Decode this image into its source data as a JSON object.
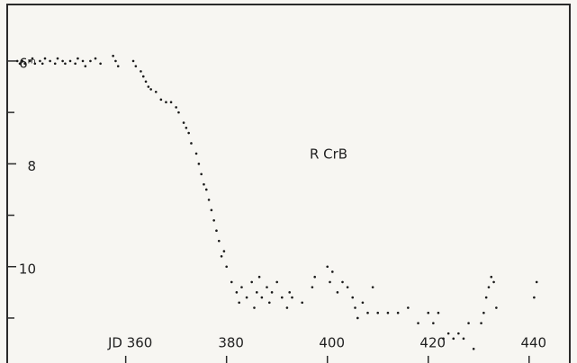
{
  "chart_data": {
    "type": "scatter",
    "title": "R CrB",
    "color": "#1a1a1a",
    "xlim": [
      336.5,
      449.5
    ],
    "ylim": [
      4.9,
      11.7
    ],
    "y_inverted": true,
    "xticks": [
      {
        "value": 360,
        "label": "JD 360"
      },
      380,
      400,
      420,
      440
    ],
    "yticks": [
      {
        "value": 6,
        "label": "6ᵐ"
      },
      8,
      10
    ],
    "minor_yticks": [
      7,
      9,
      11
    ],
    "x": [
      338.5,
      339,
      339.5,
      340,
      341,
      341.5,
      342,
      343,
      343.5,
      344,
      345,
      346,
      346.5,
      347.5,
      348,
      349,
      350,
      350.5,
      351.5,
      352,
      353,
      354,
      355,
      357.5,
      358,
      358.5,
      361.5,
      362,
      363,
      363.5,
      364,
      364.5,
      365,
      366,
      367,
      368,
      369,
      370,
      370.5,
      371.5,
      372,
      372.5,
      373,
      374,
      374.5,
      375,
      375.5,
      376,
      376.5,
      377,
      377.5,
      378,
      378.5,
      379,
      379.5,
      380,
      381,
      382,
      382.5,
      383,
      384,
      385,
      385.5,
      386,
      386.5,
      387,
      388,
      388.5,
      389,
      390,
      391,
      392,
      392.5,
      393,
      395,
      397,
      397.5,
      400,
      400.5,
      401,
      402,
      403,
      404,
      405,
      405.5,
      406,
      407,
      408,
      409,
      410,
      412,
      414,
      416,
      418,
      420,
      421,
      422,
      423,
      424,
      425,
      426,
      427,
      428,
      429,
      430.5,
      431,
      431.5,
      432,
      432.5,
      433,
      433.5,
      441,
      441.5
    ],
    "y": [
      6.0,
      6.05,
      6.0,
      6.05,
      6.0,
      5.95,
      6.05,
      6.0,
      6.05,
      5.95,
      6.0,
      6.05,
      5.95,
      6.0,
      6.05,
      6.0,
      6.05,
      5.95,
      6.0,
      6.1,
      6.0,
      5.95,
      6.05,
      5.9,
      6.0,
      6.1,
      6.0,
      6.1,
      6.2,
      6.3,
      6.4,
      6.5,
      6.55,
      6.6,
      6.75,
      6.8,
      6.8,
      6.9,
      7.0,
      7.2,
      7.3,
      7.4,
      7.6,
      7.8,
      8.0,
      8.2,
      8.4,
      8.5,
      8.7,
      8.9,
      9.1,
      9.3,
      9.5,
      9.8,
      9.7,
      10.0,
      10.3,
      10.5,
      10.7,
      10.4,
      10.6,
      10.3,
      10.8,
      10.5,
      10.2,
      10.6,
      10.4,
      10.7,
      10.5,
      10.3,
      10.6,
      10.8,
      10.5,
      10.6,
      10.7,
      10.4,
      10.2,
      10.0,
      10.3,
      10.1,
      10.5,
      10.3,
      10.4,
      10.6,
      10.8,
      11.0,
      10.7,
      10.9,
      10.4,
      10.9,
      10.9,
      10.9,
      10.8,
      11.1,
      10.9,
      11.1,
      10.9,
      11.4,
      11.3,
      11.4,
      11.3,
      11.4,
      11.1,
      11.6,
      11.1,
      10.9,
      10.6,
      10.4,
      10.2,
      10.3,
      10.8,
      10.6,
      10.3
    ]
  }
}
